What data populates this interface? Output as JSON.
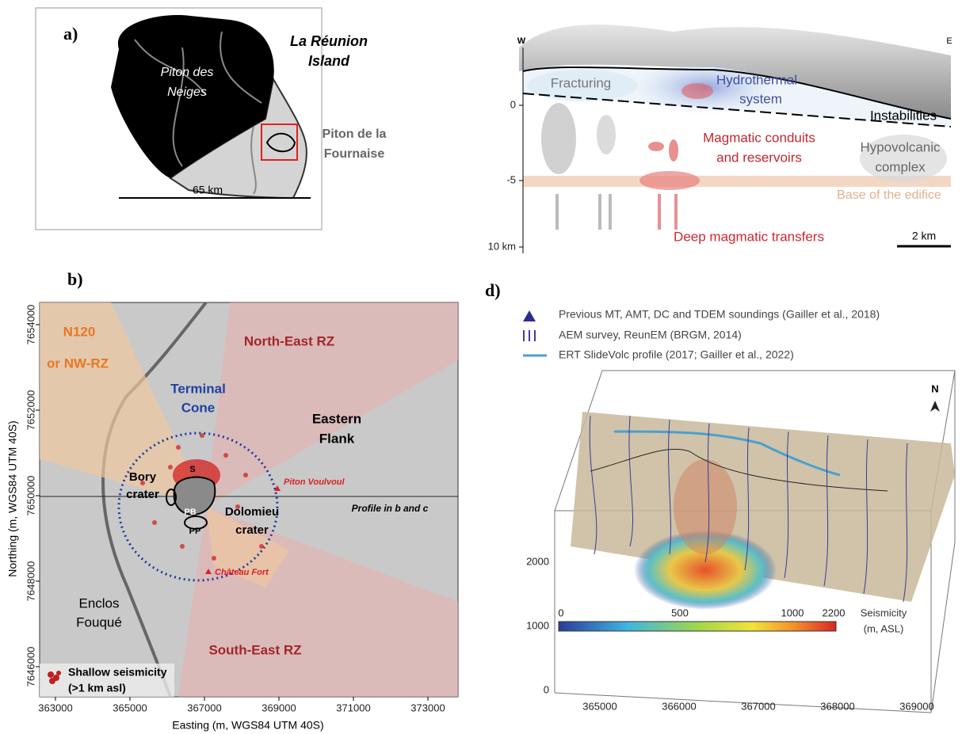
{
  "panel_a": {
    "label": "a)",
    "island": [
      "La Réunion",
      "Island"
    ],
    "piton_des_neiges": [
      "Piton des",
      "Neiges"
    ],
    "piton_fournaise": [
      "Piton de la",
      "Fournaise"
    ],
    "scale": "65 km"
  },
  "panel_c": {
    "west": "W",
    "east": "E",
    "fracturing": "Fracturing",
    "hydrothermal": [
      "Hydrothermal",
      "system"
    ],
    "instabilities": "Instabilities",
    "magmatic": [
      "Magmatic conduits",
      "and reservoirs"
    ],
    "hypovolcanic": [
      "Hypovolcanic",
      "complex"
    ],
    "base": "Base of the edifice",
    "deep": "Deep magmatic transfers",
    "depth_ticks": [
      "0",
      "-5",
      "10 km"
    ],
    "scale": "2 km"
  },
  "panel_b": {
    "label": "b)",
    "y_title": "Northing (m, WGS84 UTM 40S)",
    "x_title": "Easting (m, WGS84 UTM 40S)",
    "y_ticks": [
      7654000,
      7652000,
      7650000,
      7648000,
      7646000
    ],
    "x_ticks": [
      363000,
      365000,
      367000,
      369000,
      371000,
      373000
    ],
    "n120": [
      "N120",
      "or NW-RZ"
    ],
    "north_east": "North-East RZ",
    "terminal_cone": [
      "Terminal",
      "Cone"
    ],
    "eastern_flank": [
      "Eastern",
      "Flank"
    ],
    "bory": [
      "Bory",
      "crater"
    ],
    "s": "S",
    "pb": "PB",
    "pp": "PP",
    "dolomieu": [
      "Dolomieu",
      "crater"
    ],
    "piton_voulvoul": "Piton Voulvoul",
    "profile": "Profile in b and c",
    "enclos": [
      "Enclos",
      "Fouqué"
    ],
    "chateau_fort": "Château Fort",
    "south_east": "South-East RZ",
    "legend": [
      "Shallow seismicity",
      "(>1 km asl)"
    ]
  },
  "panel_d": {
    "label": "d)",
    "legend": [
      "Previous MT, AMT, DC and TDEM soundings (Gailler et al., 2018)",
      "AEM survey, ReunEM (BRGM, 2014)",
      "ERT SlideVolc profile (2017; Gailler et al., 2022)"
    ],
    "north": "N",
    "z_ticks": [
      2000,
      1000,
      0
    ],
    "x_ticks": [
      365000,
      366000,
      367000,
      368000,
      369000
    ],
    "colorbar_ticks": [
      0,
      500,
      1000,
      2200
    ],
    "colorbar_title": [
      "Seismicity",
      "(m, ASL)"
    ]
  }
}
